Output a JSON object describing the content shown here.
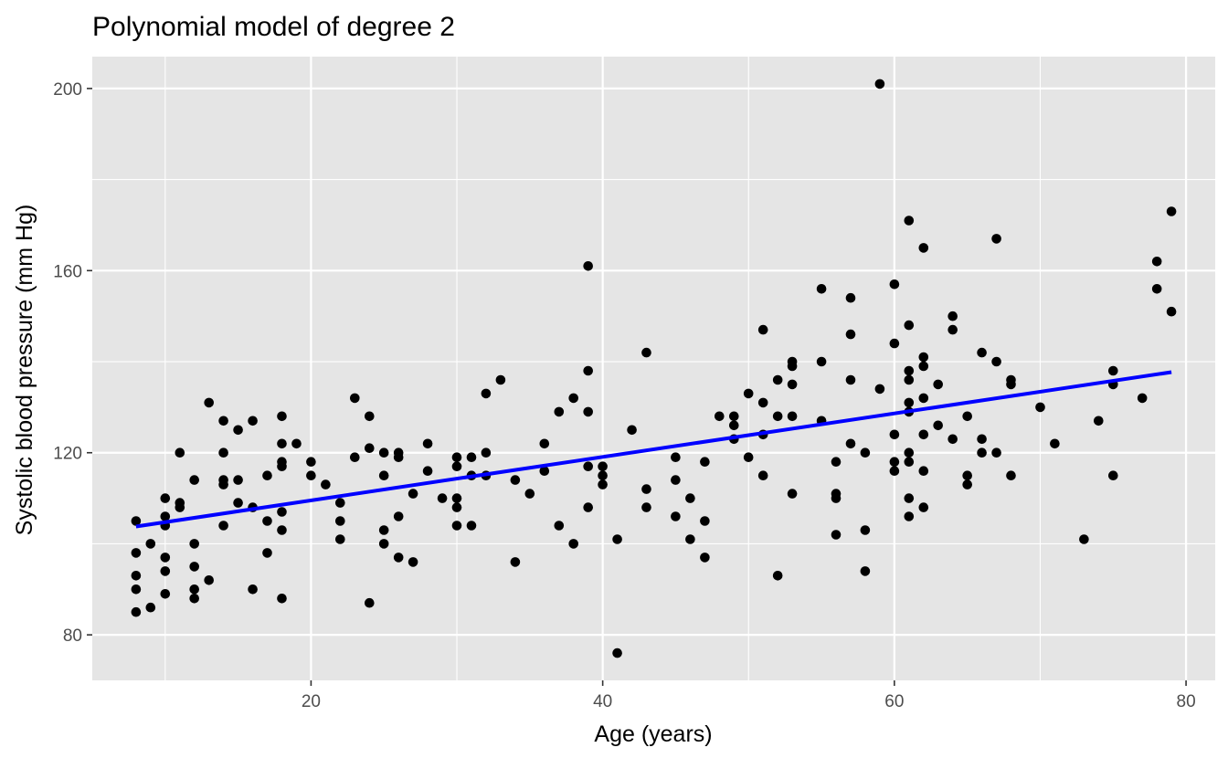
{
  "chart_data": {
    "type": "scatter",
    "title": "Polynomial model of degree 2",
    "xlabel": "Age (years)",
    "ylabel": "Systolic blood pressure (mm Hg)",
    "xlim": [
      5,
      82
    ],
    "ylim": [
      70,
      207
    ],
    "xticks": [
      20,
      40,
      60,
      80
    ],
    "yticks": [
      80,
      120,
      160,
      200
    ],
    "grid": true,
    "legend": "none",
    "colors": {
      "panel": "#e5e5e5",
      "grid": "#ffffff",
      "points": "#000000",
      "fit": "#0000ff"
    },
    "points": [
      [
        8,
        105
      ],
      [
        8,
        98
      ],
      [
        8,
        93
      ],
      [
        8,
        90
      ],
      [
        8,
        85
      ],
      [
        9,
        86
      ],
      [
        9,
        100
      ],
      [
        10,
        110
      ],
      [
        10,
        106
      ],
      [
        10,
        104
      ],
      [
        10,
        97
      ],
      [
        10,
        94
      ],
      [
        10,
        89
      ],
      [
        11,
        120
      ],
      [
        11,
        109
      ],
      [
        11,
        108
      ],
      [
        12,
        114
      ],
      [
        12,
        100
      ],
      [
        12,
        95
      ],
      [
        12,
        90
      ],
      [
        12,
        88
      ],
      [
        13,
        131
      ],
      [
        13,
        92
      ],
      [
        14,
        127
      ],
      [
        14,
        120
      ],
      [
        14,
        114
      ],
      [
        14,
        113
      ],
      [
        14,
        104
      ],
      [
        15,
        125
      ],
      [
        15,
        114
      ],
      [
        15,
        109
      ],
      [
        16,
        127
      ],
      [
        16,
        108
      ],
      [
        16,
        90
      ],
      [
        17,
        115
      ],
      [
        17,
        105
      ],
      [
        17,
        98
      ],
      [
        18,
        128
      ],
      [
        18,
        122
      ],
      [
        18,
        118
      ],
      [
        18,
        117
      ],
      [
        18,
        107
      ],
      [
        18,
        103
      ],
      [
        18,
        88
      ],
      [
        19,
        122
      ],
      [
        20,
        118
      ],
      [
        20,
        115
      ],
      [
        21,
        113
      ],
      [
        22,
        109
      ],
      [
        22,
        105
      ],
      [
        22,
        101
      ],
      [
        23,
        132
      ],
      [
        23,
        119
      ],
      [
        24,
        128
      ],
      [
        24,
        121
      ],
      [
        24,
        87
      ],
      [
        25,
        120
      ],
      [
        25,
        115
      ],
      [
        25,
        103
      ],
      [
        25,
        100
      ],
      [
        26,
        120
      ],
      [
        26,
        119
      ],
      [
        26,
        106
      ],
      [
        26,
        97
      ],
      [
        27,
        111
      ],
      [
        27,
        96
      ],
      [
        28,
        122
      ],
      [
        28,
        116
      ],
      [
        29,
        110
      ],
      [
        30,
        119
      ],
      [
        30,
        117
      ],
      [
        30,
        110
      ],
      [
        30,
        108
      ],
      [
        30,
        104
      ],
      [
        31,
        119
      ],
      [
        31,
        115
      ],
      [
        31,
        104
      ],
      [
        32,
        133
      ],
      [
        32,
        120
      ],
      [
        32,
        115
      ],
      [
        33,
        136
      ],
      [
        34,
        114
      ],
      [
        34,
        96
      ],
      [
        35,
        111
      ],
      [
        36,
        122
      ],
      [
        36,
        116
      ],
      [
        37,
        129
      ],
      [
        37,
        104
      ],
      [
        38,
        132
      ],
      [
        38,
        100
      ],
      [
        39,
        161
      ],
      [
        39,
        138
      ],
      [
        39,
        129
      ],
      [
        39,
        117
      ],
      [
        39,
        108
      ],
      [
        40,
        117
      ],
      [
        40,
        115
      ],
      [
        40,
        113
      ],
      [
        41,
        101
      ],
      [
        41,
        76
      ],
      [
        42,
        125
      ],
      [
        43,
        142
      ],
      [
        43,
        112
      ],
      [
        43,
        108
      ],
      [
        45,
        119
      ],
      [
        45,
        114
      ],
      [
        45,
        106
      ],
      [
        46,
        110
      ],
      [
        46,
        101
      ],
      [
        47,
        118
      ],
      [
        47,
        105
      ],
      [
        47,
        97
      ],
      [
        48,
        128
      ],
      [
        49,
        128
      ],
      [
        49,
        126
      ],
      [
        49,
        123
      ],
      [
        50,
        133
      ],
      [
        50,
        119
      ],
      [
        51,
        147
      ],
      [
        51,
        131
      ],
      [
        51,
        124
      ],
      [
        51,
        115
      ],
      [
        52,
        136
      ],
      [
        52,
        128
      ],
      [
        52,
        93
      ],
      [
        53,
        140
      ],
      [
        53,
        139
      ],
      [
        53,
        135
      ],
      [
        53,
        128
      ],
      [
        53,
        111
      ],
      [
        55,
        156
      ],
      [
        55,
        140
      ],
      [
        55,
        127
      ],
      [
        56,
        118
      ],
      [
        56,
        111
      ],
      [
        56,
        110
      ],
      [
        56,
        102
      ],
      [
        57,
        154
      ],
      [
        57,
        146
      ],
      [
        57,
        136
      ],
      [
        57,
        122
      ],
      [
        58,
        120
      ],
      [
        58,
        103
      ],
      [
        58,
        94
      ],
      [
        59,
        201
      ],
      [
        59,
        134
      ],
      [
        60,
        157
      ],
      [
        60,
        144
      ],
      [
        60,
        124
      ],
      [
        60,
        118
      ],
      [
        60,
        116
      ],
      [
        61,
        171
      ],
      [
        61,
        148
      ],
      [
        61,
        138
      ],
      [
        61,
        136
      ],
      [
        61,
        131
      ],
      [
        61,
        129
      ],
      [
        61,
        120
      ],
      [
        61,
        118
      ],
      [
        61,
        110
      ],
      [
        61,
        106
      ],
      [
        62,
        165
      ],
      [
        62,
        141
      ],
      [
        62,
        139
      ],
      [
        62,
        132
      ],
      [
        62,
        124
      ],
      [
        62,
        116
      ],
      [
        62,
        108
      ],
      [
        63,
        135
      ],
      [
        63,
        126
      ],
      [
        64,
        150
      ],
      [
        64,
        147
      ],
      [
        64,
        123
      ],
      [
        65,
        128
      ],
      [
        65,
        115
      ],
      [
        65,
        113
      ],
      [
        66,
        142
      ],
      [
        66,
        123
      ],
      [
        66,
        120
      ],
      [
        67,
        167
      ],
      [
        67,
        140
      ],
      [
        67,
        120
      ],
      [
        68,
        136
      ],
      [
        68,
        135
      ],
      [
        68,
        115
      ],
      [
        70,
        130
      ],
      [
        71,
        122
      ],
      [
        73,
        101
      ],
      [
        74,
        127
      ],
      [
        75,
        138
      ],
      [
        75,
        135
      ],
      [
        75,
        115
      ],
      [
        77,
        132
      ],
      [
        78,
        162
      ],
      [
        78,
        156
      ],
      [
        79,
        173
      ],
      [
        79,
        151
      ]
    ],
    "fit_line": {
      "x": [
        8,
        79
      ],
      "y": [
        103.8,
        137.7
      ]
    }
  }
}
